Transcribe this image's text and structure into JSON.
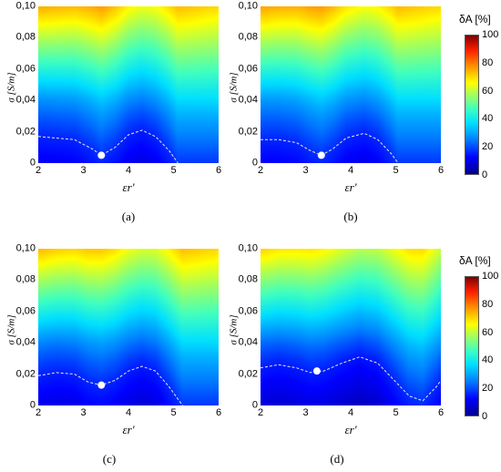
{
  "chart_data": [
    {
      "type": "heatmap",
      "panel": "(a)",
      "xlabel": "εr'",
      "ylabel": "σ [S/m]",
      "xlim": [
        2,
        6
      ],
      "ylim": [
        0,
        0.1
      ],
      "x_ticks": [
        "2",
        "3",
        "4",
        "5",
        "6"
      ],
      "y_ticks": [
        "0",
        "0,02",
        "0,04",
        "0,06",
        "0,08",
        "0,10"
      ],
      "marker": {
        "x": 3.4,
        "y": 0.005
      },
      "contour": [
        [
          2.0,
          0.017
        ],
        [
          2.4,
          0.016
        ],
        [
          2.8,
          0.015
        ],
        [
          3.2,
          0.009
        ],
        [
          3.4,
          0.005
        ],
        [
          3.7,
          0.01
        ],
        [
          4.0,
          0.018
        ],
        [
          4.3,
          0.021
        ],
        [
          4.6,
          0.017
        ],
        [
          4.9,
          0.008
        ],
        [
          5.1,
          0.0
        ]
      ]
    },
    {
      "type": "heatmap",
      "panel": "(b)",
      "xlabel": "εr'",
      "ylabel": "σ [S/m]",
      "xlim": [
        2,
        6
      ],
      "ylim": [
        0,
        0.1
      ],
      "x_ticks": [
        "2",
        "3",
        "4",
        "5",
        "6"
      ],
      "y_ticks": [
        "0",
        "0,02",
        "0,04",
        "0,06",
        "0,08",
        "0,10"
      ],
      "marker": {
        "x": 3.35,
        "y": 0.005
      },
      "contour": [
        [
          2.0,
          0.015
        ],
        [
          2.4,
          0.015
        ],
        [
          2.8,
          0.013
        ],
        [
          3.1,
          0.008
        ],
        [
          3.35,
          0.005
        ],
        [
          3.6,
          0.009
        ],
        [
          3.9,
          0.016
        ],
        [
          4.3,
          0.019
        ],
        [
          4.6,
          0.015
        ],
        [
          4.9,
          0.006
        ],
        [
          5.05,
          0.0
        ]
      ]
    },
    {
      "type": "heatmap",
      "panel": "(c)",
      "xlabel": "εr'",
      "ylabel": "σ [S/m]",
      "xlim": [
        2,
        6
      ],
      "ylim": [
        0,
        0.1
      ],
      "x_ticks": [
        "2",
        "3",
        "4",
        "5",
        "6"
      ],
      "y_ticks": [
        "0",
        "0,02",
        "0,04",
        "0,06",
        "0,08",
        "0,10"
      ],
      "marker": {
        "x": 3.4,
        "y": 0.013
      },
      "contour": [
        [
          2.0,
          0.019
        ],
        [
          2.4,
          0.021
        ],
        [
          2.8,
          0.02
        ],
        [
          3.1,
          0.015
        ],
        [
          3.4,
          0.013
        ],
        [
          3.7,
          0.016
        ],
        [
          4.0,
          0.022
        ],
        [
          4.3,
          0.025
        ],
        [
          4.6,
          0.022
        ],
        [
          4.9,
          0.012
        ],
        [
          5.2,
          0.0
        ]
      ]
    },
    {
      "type": "heatmap",
      "panel": "(d)",
      "xlabel": "εr'",
      "ylabel": "σ [S/m]",
      "xlim": [
        2,
        6
      ],
      "ylim": [
        0,
        0.1
      ],
      "x_ticks": [
        "2",
        "3",
        "4",
        "5",
        "6"
      ],
      "y_ticks": [
        "0",
        "0,02",
        "0,04",
        "0,06",
        "0,08",
        "0,10"
      ],
      "marker": {
        "x": 3.25,
        "y": 0.022
      },
      "contour": [
        [
          2.0,
          0.024
        ],
        [
          2.4,
          0.026
        ],
        [
          2.8,
          0.024
        ],
        [
          3.1,
          0.021
        ],
        [
          3.4,
          0.022
        ],
        [
          3.8,
          0.027
        ],
        [
          4.2,
          0.031
        ],
        [
          4.6,
          0.027
        ],
        [
          5.0,
          0.015
        ],
        [
          5.3,
          0.006
        ],
        [
          5.6,
          0.003
        ],
        [
          5.9,
          0.012
        ],
        [
          6.0,
          0.016
        ]
      ]
    }
  ],
  "colorbar": {
    "title": "δA [%]",
    "ticks": [
      "0",
      "20",
      "40",
      "60",
      "80",
      "100"
    ],
    "range": [
      0,
      100
    ]
  }
}
